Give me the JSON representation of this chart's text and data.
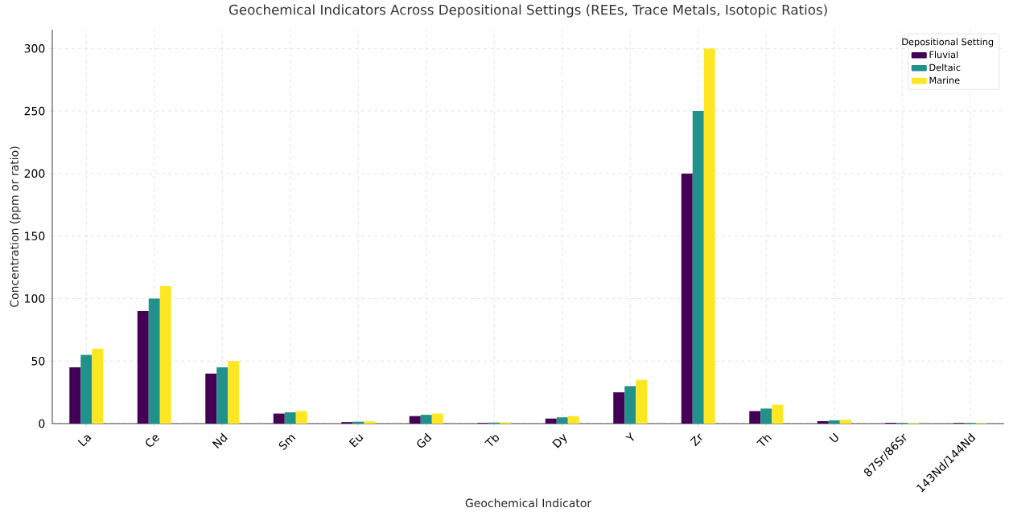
{
  "chart_data": {
    "type": "bar",
    "title": "Geochemical Indicators Across Depositional Settings (REEs, Trace Metals, Isotopic Ratios)",
    "xlabel": "Geochemical Indicator",
    "ylabel": "Concentration (ppm or ratio)",
    "legend_title": "Depositional Setting",
    "categories": [
      "La",
      "Ce",
      "Nd",
      "Sm",
      "Eu",
      "Gd",
      "Tb",
      "Dy",
      "Y",
      "Zr",
      "Th",
      "U",
      "87Sr/86Sr",
      "143Nd/144Nd"
    ],
    "series": [
      {
        "name": "Fluvial",
        "color": "#440154",
        "values": [
          45,
          90,
          40,
          8,
          1.2,
          6,
          0.5,
          4,
          25,
          200,
          10,
          2,
          0.7,
          0.5
        ]
      },
      {
        "name": "Deltaic",
        "color": "#21918c",
        "values": [
          55,
          100,
          45,
          9,
          1.5,
          7,
          0.8,
          5,
          30,
          250,
          12,
          2.5,
          0.7,
          0.5
        ]
      },
      {
        "name": "Marine",
        "color": "#fde725",
        "values": [
          60,
          110,
          50,
          10,
          1.8,
          8,
          1,
          6,
          35,
          300,
          15,
          3,
          0.7,
          0.5
        ]
      }
    ],
    "ylim": [
      0,
      315
    ],
    "yticks": [
      0,
      50,
      100,
      150,
      200,
      250,
      300
    ],
    "grid": true,
    "legend": "top right"
  }
}
